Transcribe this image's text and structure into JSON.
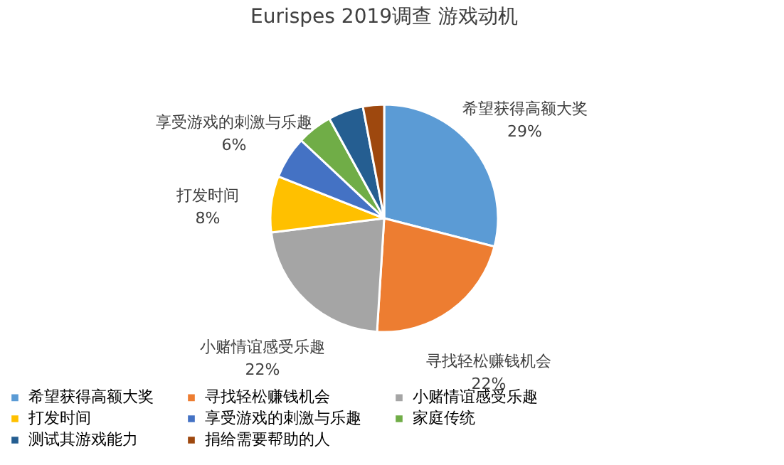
{
  "chart_data": {
    "type": "pie",
    "title": "Eurispes 2019调查 游戏动机",
    "categories": [
      "希望获得高额大奖",
      "寻找轻松赚钱机会",
      "小赌情谊感受乐趣",
      "打发时间",
      "享受游戏的刺激与乐趣",
      "家庭传统",
      "测试其游戏能力",
      "捐给需要帮助的人"
    ],
    "values": [
      29,
      22,
      22,
      8,
      6,
      5,
      5,
      3
    ],
    "colors": [
      "#5b9bd5",
      "#ed7d31",
      "#a5a5a5",
      "#ffc000",
      "#4472c4",
      "#70ad47",
      "#255e91",
      "#9e480e"
    ],
    "value_labels": [
      "29%",
      "22%",
      "22%",
      "8%",
      "6%",
      null,
      null,
      null
    ],
    "legend": "bottom"
  }
}
